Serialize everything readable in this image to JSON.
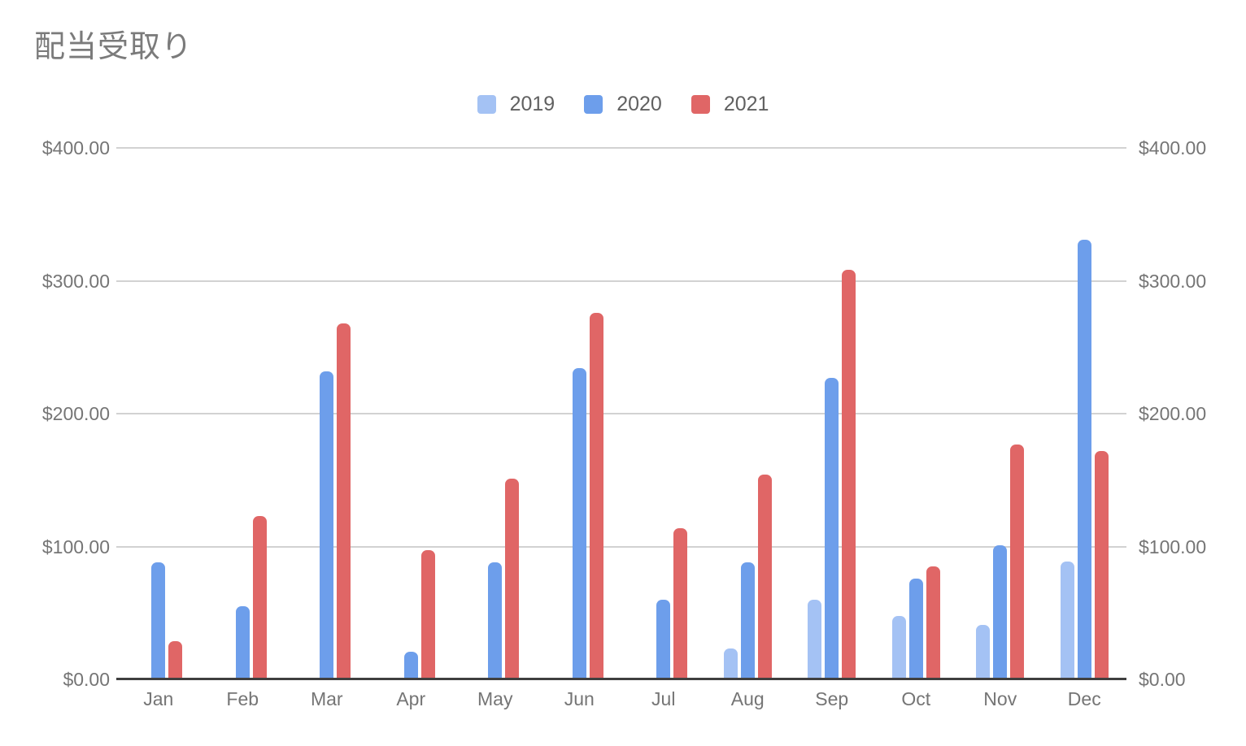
{
  "title": "配当受取り",
  "legend": [
    {
      "label": "2019",
      "color": "#A4C2F4"
    },
    {
      "label": "2020",
      "color": "#6D9EEB"
    },
    {
      "label": "2021",
      "color": "#E06666"
    }
  ],
  "axes": {
    "left_ticks": [
      "$0.00",
      "$100.00",
      "$200.00",
      "$300.00",
      "$400.00"
    ],
    "right_ticks": [
      "$0.00",
      "$100.00",
      "$200.00",
      "$300.00",
      "$400.00"
    ]
  },
  "chart_data": {
    "type": "bar",
    "title": "配当受取り",
    "categories": [
      "Jan",
      "Feb",
      "Mar",
      "Apr",
      "May",
      "Jun",
      "Jul",
      "Aug",
      "Sep",
      "Oct",
      "Nov",
      "Dec"
    ],
    "series": [
      {
        "name": "2019",
        "color": "#A4C2F4",
        "values": [
          null,
          null,
          null,
          null,
          null,
          null,
          null,
          23,
          60,
          48,
          41,
          89
        ]
      },
      {
        "name": "2020",
        "color": "#6D9EEB",
        "values": [
          88,
          55,
          232,
          21,
          88,
          234,
          60,
          88,
          227,
          76,
          101,
          331
        ]
      },
      {
        "name": "2021",
        "color": "#E06666",
        "values": [
          29,
          123,
          268,
          97,
          151,
          276,
          114,
          154,
          308,
          85,
          177,
          172
        ]
      }
    ],
    "ylabel": "",
    "xlabel": "",
    "ylim": [
      0,
      400
    ],
    "y_tick_format": "$#,##0.00",
    "grid": true,
    "dual_axis": true,
    "legend_position": "top",
    "colors": {
      "grid": "#d2d2d2",
      "axis": "#3f3f3f",
      "text": "#757575",
      "title": "#7b7b7b"
    }
  }
}
